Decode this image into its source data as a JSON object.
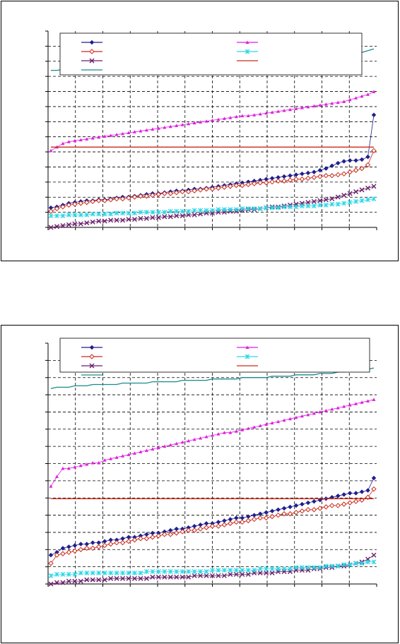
{
  "chart_data": [
    {
      "type": "line",
      "title": "",
      "xlabel": "",
      "ylabel": "",
      "grid": true,
      "legend": "top-inside",
      "x_tick_count": 12,
      "y_tick_count": 13,
      "series": [
        {
          "name": "",
          "color": "#1f1f8f",
          "marker": "diamond",
          "values": [
            2.2,
            2.3,
            2.5,
            2.7,
            2.8,
            2.9,
            3.0,
            3.0,
            3.1,
            3.1,
            3.2,
            3.3,
            3.4,
            3.4,
            3.5,
            3.6,
            3.7,
            3.8,
            3.8,
            3.9,
            4.0,
            4.1,
            4.1,
            4.2,
            4.3,
            4.3,
            4.4,
            4.5,
            4.6,
            4.7,
            4.8,
            4.9,
            5.0,
            5.1,
            5.2,
            5.3,
            5.4,
            5.5,
            5.6,
            5.7,
            5.8,
            5.9,
            6.0,
            6.1,
            6.2,
            6.4,
            6.6,
            6.9,
            7.2,
            7.4,
            7.5,
            7.5,
            7.6,
            7.9,
            12.6
          ]
        },
        {
          "name": "",
          "color": "#cc2a1a",
          "marker": "diamond-open",
          "values": [
            1.8,
            2.1,
            2.3,
            2.5,
            2.6,
            2.7,
            2.8,
            2.9,
            3.0,
            3.0,
            3.1,
            3.2,
            3.2,
            3.3,
            3.4,
            3.5,
            3.5,
            3.6,
            3.7,
            3.8,
            3.8,
            3.9,
            4.0,
            4.0,
            4.1,
            4.2,
            4.3,
            4.3,
            4.4,
            4.5,
            4.6,
            4.7,
            4.7,
            4.8,
            4.9,
            5.0,
            5.0,
            5.1,
            5.2,
            5.2,
            5.3,
            5.4,
            5.4,
            5.5,
            5.6,
            5.7,
            5.8,
            5.8,
            5.9,
            6.0,
            6.2,
            6.4,
            6.6,
            7.0,
            8.6
          ]
        },
        {
          "name": "",
          "color": "#6a1f6a",
          "marker": "x",
          "values": [
            0.0,
            0.1,
            0.2,
            0.3,
            0.4,
            0.4,
            0.5,
            0.6,
            0.7,
            0.7,
            0.8,
            0.8,
            0.8,
            0.9,
            0.9,
            1.0,
            1.0,
            1.1,
            1.1,
            1.2,
            1.2,
            1.3,
            1.3,
            1.4,
            1.4,
            1.5,
            1.6,
            1.6,
            1.7,
            1.7,
            1.8,
            1.8,
            1.9,
            2.0,
            2.0,
            2.1,
            2.2,
            2.3,
            2.3,
            2.4,
            2.5,
            2.6,
            2.7,
            2.8,
            2.9,
            3.0,
            3.1,
            3.2,
            3.4,
            3.6,
            3.8,
            4.0,
            4.2,
            4.4,
            4.6
          ]
        },
        {
          "name": "",
          "color": "#e01ee0",
          "marker": "triangle",
          "values": [
            8.6,
            9.0,
            9.4,
            9.6,
            9.7,
            9.8,
            9.9,
            10.0,
            10.1,
            10.2,
            10.3,
            10.4,
            10.5,
            10.6,
            10.7,
            10.8,
            10.9,
            11.0,
            11.1,
            11.2,
            11.3,
            11.4,
            11.5,
            11.6,
            11.7,
            11.8,
            11.9,
            12.0,
            12.1,
            12.2,
            12.3,
            12.4,
            12.5,
            12.5,
            12.6,
            12.7,
            12.8,
            12.9,
            13.0,
            13.1,
            13.2,
            13.3,
            13.4,
            13.5,
            13.6,
            13.7,
            13.8,
            13.9,
            14.0,
            14.1,
            14.3,
            14.5,
            14.7,
            14.9,
            15.2
          ]
        },
        {
          "name": "",
          "color": "#2ad6e6",
          "marker": "asterisk",
          "values": [
            1.3,
            1.3,
            1.3,
            1.4,
            1.4,
            1.4,
            1.4,
            1.5,
            1.5,
            1.5,
            1.5,
            1.6,
            1.6,
            1.6,
            1.6,
            1.7,
            1.7,
            1.7,
            1.7,
            1.7,
            1.8,
            1.8,
            1.8,
            1.8,
            1.9,
            1.9,
            1.9,
            1.9,
            2.0,
            2.0,
            2.0,
            2.0,
            2.1,
            2.1,
            2.1,
            2.1,
            2.2,
            2.2,
            2.2,
            2.3,
            2.3,
            2.3,
            2.4,
            2.4,
            2.4,
            2.5,
            2.5,
            2.6,
            2.6,
            2.7,
            2.8,
            2.9,
            3.0,
            3.1,
            3.2
          ]
        },
        {
          "name": "",
          "color": "#cc2a1a",
          "marker": "none",
          "values": [
            9.0,
            9.0,
            9.0,
            9.0,
            9.0,
            9.0,
            9.0,
            9.0,
            9.0,
            9.0,
            9.0,
            9.0,
            9.0,
            9.0,
            9.0,
            9.0,
            9.0,
            9.0,
            9.0,
            9.0,
            9.0,
            9.0,
            9.0,
            9.0,
            9.0,
            9.0,
            9.0,
            9.0,
            9.0,
            9.0,
            9.0,
            9.0,
            9.0,
            9.0,
            9.0,
            9.0,
            9.0,
            9.0,
            9.0,
            9.0,
            9.0,
            9.0,
            9.0,
            9.0,
            9.0,
            9.0,
            9.0,
            9.0,
            9.0,
            9.0,
            9.0,
            9.0,
            9.0,
            9.0,
            9.0
          ]
        },
        {
          "name": "",
          "color": "#1a8c8c",
          "marker": "none",
          "values": [
            17.6,
            17.6,
            17.7,
            17.7,
            17.8,
            17.8,
            17.9,
            17.9,
            18.0,
            18.0,
            18.0,
            18.1,
            18.1,
            18.1,
            18.2,
            18.2,
            18.2,
            18.3,
            18.3,
            18.3,
            18.4,
            18.4,
            18.4,
            18.5,
            18.5,
            18.5,
            18.5,
            18.6,
            18.6,
            18.6,
            18.6,
            18.7,
            18.7,
            18.7,
            18.7,
            18.8,
            18.8,
            18.8,
            18.8,
            18.9,
            18.9,
            18.9,
            19.0,
            19.0,
            19.0,
            19.1,
            19.1,
            19.1,
            19.2,
            19.2,
            19.3,
            19.4,
            19.6,
            19.8,
            20.0
          ]
        }
      ]
    },
    {
      "type": "line",
      "title": "",
      "xlabel": "",
      "ylabel": "",
      "grid": true,
      "legend": "top-inside",
      "x_tick_count": 12,
      "y_tick_count": 14,
      "series": [
        {
          "name": "",
          "color": "#1f1f8f",
          "marker": "diamond",
          "values": [
            2.1,
            2.3,
            2.6,
            2.7,
            2.8,
            2.9,
            2.9,
            3.0,
            3.0,
            3.1,
            3.2,
            3.2,
            3.3,
            3.4,
            3.4,
            3.5,
            3.6,
            3.7,
            3.7,
            3.8,
            3.9,
            4.0,
            4.0,
            4.1,
            4.2,
            4.3,
            4.4,
            4.4,
            4.5,
            4.6,
            4.7,
            4.8,
            4.8,
            4.9,
            5.0,
            5.1,
            5.2,
            5.3,
            5.4,
            5.5,
            5.6,
            5.7,
            5.8,
            5.9,
            6.0,
            6.1,
            6.2,
            6.3,
            6.4,
            6.5,
            6.6,
            6.6,
            6.7,
            6.8,
            7.7
          ]
        },
        {
          "name": "",
          "color": "#cc2a1a",
          "marker": "diamond-open",
          "values": [
            1.5,
            2.1,
            2.2,
            2.3,
            2.4,
            2.5,
            2.6,
            2.6,
            2.7,
            2.8,
            2.9,
            3.0,
            3.0,
            3.1,
            3.2,
            3.3,
            3.3,
            3.4,
            3.5,
            3.6,
            3.6,
            3.7,
            3.8,
            3.9,
            3.9,
            4.0,
            4.1,
            4.2,
            4.2,
            4.3,
            4.4,
            4.5,
            4.5,
            4.6,
            4.7,
            4.8,
            4.8,
            4.9,
            5.0,
            5.1,
            5.1,
            5.2,
            5.3,
            5.4,
            5.4,
            5.5,
            5.6,
            5.7,
            5.7,
            5.8,
            5.9,
            6.0,
            6.1,
            6.3,
            6.9
          ]
        },
        {
          "name": "",
          "color": "#6a1f6a",
          "marker": "x",
          "values": [
            0.0,
            0.1,
            0.1,
            0.2,
            0.2,
            0.2,
            0.3,
            0.3,
            0.3,
            0.3,
            0.4,
            0.4,
            0.4,
            0.4,
            0.4,
            0.4,
            0.4,
            0.5,
            0.5,
            0.5,
            0.5,
            0.5,
            0.5,
            0.5,
            0.6,
            0.6,
            0.6,
            0.6,
            0.6,
            0.6,
            0.7,
            0.7,
            0.7,
            0.7,
            0.8,
            0.8,
            0.8,
            0.8,
            0.9,
            0.9,
            0.9,
            1.0,
            1.0,
            1.0,
            1.1,
            1.1,
            1.2,
            1.2,
            1.3,
            1.3,
            1.4,
            1.5,
            1.6,
            1.8,
            2.1
          ]
        },
        {
          "name": "",
          "color": "#e01ee0",
          "marker": "triangle",
          "values": [
            7.1,
            7.8,
            8.4,
            8.4,
            8.5,
            8.6,
            8.7,
            8.8,
            8.8,
            9.0,
            9.1,
            9.2,
            9.3,
            9.4,
            9.5,
            9.6,
            9.7,
            9.8,
            9.9,
            10.0,
            10.1,
            10.2,
            10.3,
            10.4,
            10.5,
            10.6,
            10.7,
            10.8,
            10.9,
            11.0,
            11.0,
            11.1,
            11.2,
            11.3,
            11.4,
            11.5,
            11.6,
            11.7,
            11.8,
            11.9,
            12.0,
            12.1,
            12.2,
            12.3,
            12.4,
            12.5,
            12.6,
            12.7,
            12.8,
            12.9,
            13.0,
            13.1,
            13.2,
            13.3,
            13.4
          ]
        },
        {
          "name": "",
          "color": "#2ad6e6",
          "marker": "asterisk",
          "values": [
            0.6,
            0.7,
            0.7,
            0.7,
            0.7,
            0.8,
            0.8,
            0.8,
            0.8,
            0.8,
            0.8,
            0.8,
            0.8,
            0.8,
            0.8,
            0.8,
            0.9,
            0.9,
            0.9,
            0.9,
            0.9,
            0.9,
            0.9,
            0.9,
            0.9,
            0.9,
            0.9,
            1.0,
            1.0,
            1.0,
            1.0,
            1.0,
            1.0,
            1.0,
            1.0,
            1.1,
            1.1,
            1.1,
            1.1,
            1.1,
            1.1,
            1.2,
            1.2,
            1.2,
            1.2,
            1.2,
            1.3,
            1.3,
            1.3,
            1.4,
            1.4,
            1.5,
            1.5,
            1.6,
            1.6
          ]
        },
        {
          "name": "",
          "color": "#cc2a1a",
          "marker": "none",
          "values": [
            6.2,
            6.2,
            6.2,
            6.2,
            6.2,
            6.2,
            6.2,
            6.2,
            6.2,
            6.2,
            6.2,
            6.2,
            6.2,
            6.2,
            6.2,
            6.2,
            6.2,
            6.2,
            6.2,
            6.2,
            6.2,
            6.2,
            6.2,
            6.2,
            6.2,
            6.2,
            6.2,
            6.2,
            6.2,
            6.2,
            6.2,
            6.2,
            6.2,
            6.2,
            6.2,
            6.2,
            6.2,
            6.2,
            6.2,
            6.2,
            6.2,
            6.2,
            6.2,
            6.2,
            6.2,
            6.2,
            6.2,
            6.2,
            6.2,
            6.2,
            6.2,
            6.2,
            6.2,
            6.2,
            6.2
          ]
        },
        {
          "name": "",
          "color": "#1a8c8c",
          "marker": "none",
          "values": [
            14.2,
            14.3,
            14.3,
            14.3,
            14.4,
            14.4,
            14.4,
            14.5,
            14.5,
            14.5,
            14.5,
            14.5,
            14.6,
            14.6,
            14.6,
            14.6,
            14.6,
            14.7,
            14.7,
            14.7,
            14.7,
            14.7,
            14.8,
            14.8,
            14.8,
            14.8,
            14.8,
            14.9,
            14.9,
            14.9,
            14.9,
            14.9,
            15.0,
            15.0,
            15.0,
            15.0,
            15.0,
            15.1,
            15.1,
            15.1,
            15.1,
            15.2,
            15.2,
            15.2,
            15.2,
            15.3,
            15.3,
            15.3,
            15.4,
            15.4,
            15.5,
            15.5,
            15.6,
            15.6,
            15.7
          ]
        }
      ]
    }
  ]
}
